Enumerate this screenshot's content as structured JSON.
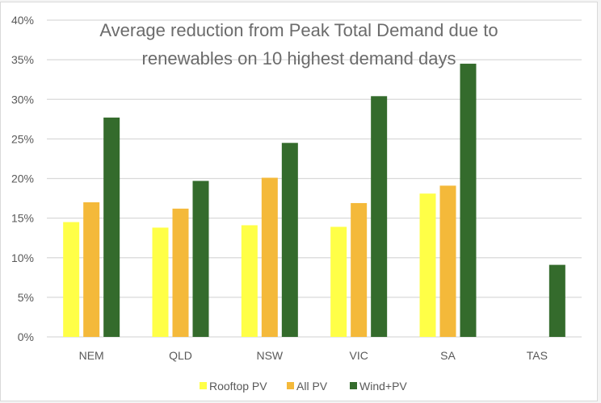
{
  "chart_data": {
    "type": "bar",
    "title": "Average reduction from Peak Total Demand due to renewables on 10 highest demand days",
    "title_lines": [
      "Average reduction from Peak Total Demand due to",
      "renewables on 10 highest demand days"
    ],
    "xlabel": "",
    "ylabel": "",
    "categories": [
      "NEM",
      "QLD",
      "NSW",
      "VIC",
      "SA",
      "TAS"
    ],
    "series": [
      {
        "name": "Rooftop PV",
        "color": "#ffff47",
        "values": [
          14.5,
          13.8,
          14.1,
          13.9,
          18.1,
          0
        ]
      },
      {
        "name": "All PV",
        "color": "#f4b93a",
        "values": [
          17.0,
          16.2,
          20.1,
          16.9,
          19.1,
          0
        ]
      },
      {
        "name": "Wind+PV",
        "color": "#346b2c",
        "values": [
          27.7,
          19.7,
          24.5,
          30.4,
          34.5,
          9.1
        ]
      }
    ],
    "ylim": [
      0,
      40
    ],
    "yticks": [
      0,
      5,
      10,
      15,
      20,
      25,
      30,
      35,
      40
    ],
    "ytick_labels": [
      "0%",
      "5%",
      "10%",
      "15%",
      "20%",
      "25%",
      "30%",
      "35%",
      "40%"
    ],
    "grid": true,
    "legend_position": "bottom"
  }
}
